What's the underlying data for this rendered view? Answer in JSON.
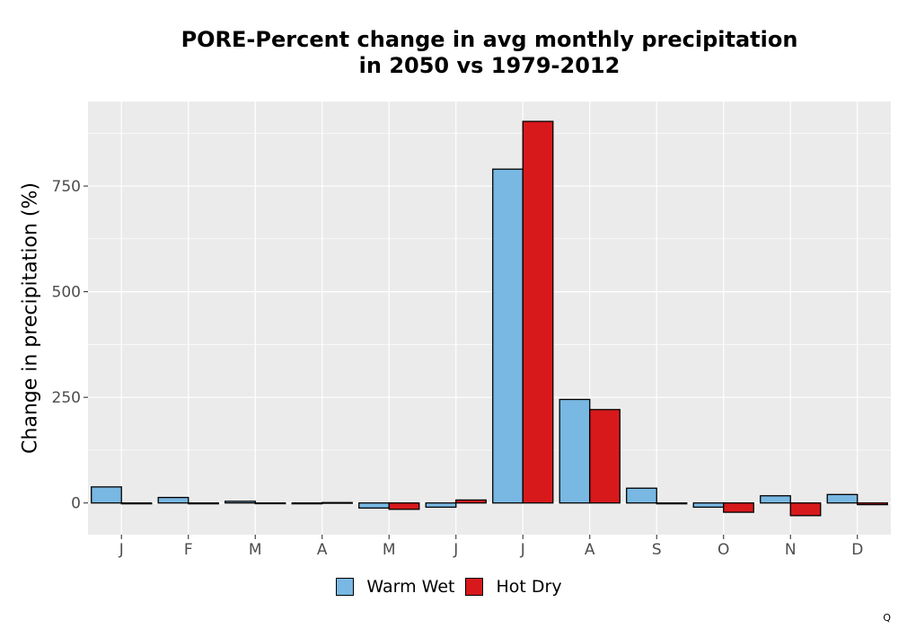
{
  "chart_data": {
    "type": "bar",
    "title_lines": [
      "PORE-Percent change in avg monthly precipitation",
      "in 2050 vs 1979-2012"
    ],
    "xlabel": "",
    "ylabel": "Change in precipitation (%)",
    "categories": [
      "J",
      "F",
      "M",
      "A",
      "M",
      "J",
      "J",
      "A",
      "S",
      "O",
      "N",
      "D"
    ],
    "ylim": [
      -75,
      950
    ],
    "yticks": [
      0,
      250,
      500,
      750
    ],
    "ytick_labels": [
      "0",
      "250",
      "500",
      "750"
    ],
    "grid": true,
    "legend_position": "bottom",
    "series": [
      {
        "name": "Warm Wet",
        "color": "#78b8e2",
        "values": [
          38,
          13,
          4,
          -2,
          -12,
          -10,
          790,
          245,
          35,
          -10,
          17,
          20
        ]
      },
      {
        "name": "Hot Dry",
        "color": "#d7191c",
        "values": [
          -2,
          -2,
          -1,
          1,
          -15,
          7,
          903,
          221,
          -2,
          -22,
          -30,
          -4
        ]
      }
    ]
  },
  "footnote": "Q"
}
